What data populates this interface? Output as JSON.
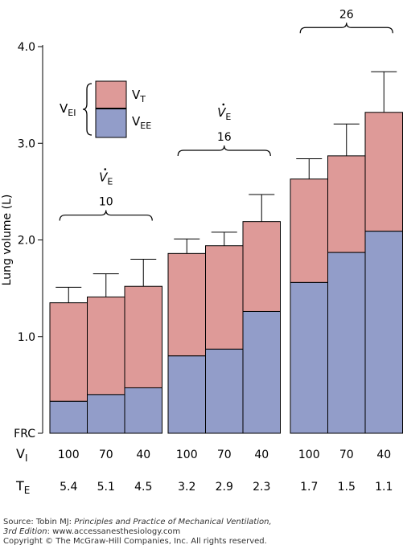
{
  "chart_data": {
    "type": "bar",
    "stacked": true,
    "ylabel": "Lung volume (L)",
    "yticks": [
      "FRC",
      "1.0",
      "2.0",
      "3.0",
      "4.0"
    ],
    "ylim": [
      0,
      4.0
    ],
    "row_labels": {
      "vi": {
        "main": "V",
        "sub": "I"
      },
      "te": {
        "main": "T",
        "sub": "E"
      }
    },
    "legend": {
      "group": {
        "main": "V",
        "sub": "EI"
      },
      "top": {
        "main": "V",
        "sub": "T",
        "color": "#de9a98"
      },
      "bottom": {
        "main": "V",
        "sub": "EE",
        "color": "#929dc9"
      }
    },
    "colors": {
      "vt": "#de9a98",
      "vee": "#929dc9"
    },
    "groups": [
      {
        "ve_label": {
          "main": "V",
          "sub": "E"
        },
        "ve_value": "10",
        "bars": [
          {
            "vi": "100",
            "te": "5.4",
            "vee": 0.33,
            "vei": 1.35,
            "err_top": 1.51
          },
          {
            "vi": "70",
            "te": "5.1",
            "vee": 0.4,
            "vei": 1.41,
            "err_top": 1.65
          },
          {
            "vi": "40",
            "te": "4.5",
            "vee": 0.47,
            "vei": 1.52,
            "err_top": 1.8
          }
        ]
      },
      {
        "ve_label": {
          "main": "V",
          "sub": "E"
        },
        "ve_value": "16",
        "bars": [
          {
            "vi": "100",
            "te": "3.2",
            "vee": 0.8,
            "vei": 1.86,
            "err_top": 2.01
          },
          {
            "vi": "70",
            "te": "2.9",
            "vee": 0.87,
            "vei": 1.94,
            "err_top": 2.08
          },
          {
            "vi": "40",
            "te": "2.3",
            "vee": 1.26,
            "vei": 2.19,
            "err_top": 2.47
          }
        ]
      },
      {
        "ve_label": {
          "main": "V",
          "sub": "E"
        },
        "ve_value": "26",
        "bars": [
          {
            "vi": "100",
            "te": "1.7",
            "vee": 1.56,
            "vei": 2.63,
            "err_top": 2.84
          },
          {
            "vi": "70",
            "te": "1.5",
            "vee": 1.87,
            "vei": 2.87,
            "err_top": 3.2
          },
          {
            "vi": "40",
            "te": "1.1",
            "vee": 2.09,
            "vei": 3.32,
            "err_top": 3.74
          }
        ]
      }
    ]
  },
  "source": {
    "line1_prefix": "Source: Tobin MJ: ",
    "line1_italic": "Principles and Practice of Mechanical Ventilation,",
    "line2_italic": "3rd Edition",
    "line2_rest": ": www.accessanesthesiology.com",
    "line3": "Copyright © The McGraw-Hill Companies, Inc. All rights reserved."
  }
}
